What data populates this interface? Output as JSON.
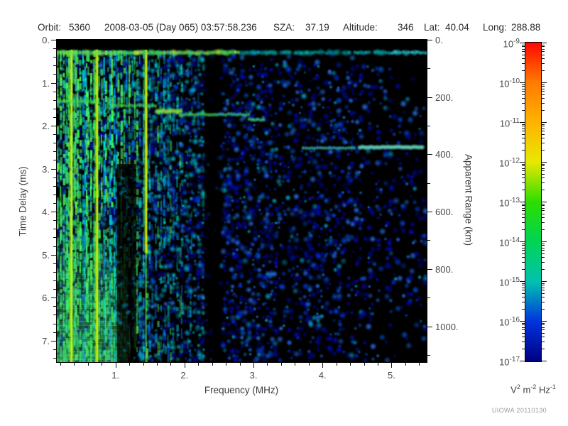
{
  "header": {
    "orbit_label": "Orbit:",
    "orbit_value": "5360",
    "datetime": "2008-03-05 (Day 065) 03:57:58.236",
    "sza_label": "SZA:",
    "sza_value": "37.19",
    "altitude_label": "Altitude:",
    "altitude_value": "346",
    "lat_label": "Lat:",
    "lat_value": "40.04",
    "long_label": "Long:",
    "long_value": "288.88"
  },
  "chart_data": {
    "type": "heatmap",
    "xlabel": "Frequency (MHz)",
    "ylabel_left": "Time Delay (ms)",
    "ylabel_right": "Apparent Range (km)",
    "x_range_mhz": [
      0.15,
      5.51
    ],
    "x_major_ticks": [
      1,
      2,
      3,
      4,
      5
    ],
    "x_tick_labels": [
      "1.",
      "2.",
      "3.",
      "4.",
      "5."
    ],
    "x_minor_step_mhz": 0.2,
    "y_range_ms": [
      0,
      7.5
    ],
    "y_major_ticks": [
      0,
      1,
      2,
      3,
      4,
      5,
      6,
      7
    ],
    "y_tick_labels": [
      "0.",
      "1.",
      "2.",
      "3.",
      "4.",
      "5.",
      "6.",
      "7."
    ],
    "y_minor_step_ms": 0.2,
    "right_range_km": [
      0,
      1125
    ],
    "right_major_ticks": [
      0,
      200,
      400,
      600,
      800,
      1000
    ],
    "right_tick_labels": [
      "0.",
      "200.",
      "400.",
      "600.",
      "800.",
      "1000."
    ],
    "right_minor_step_km": 100,
    "features": {
      "transmit_pulse": {
        "delay_ms": 0.3,
        "freq_span_mhz": [
          0.15,
          5.51
        ]
      },
      "ionospheric_echo_trace": [
        {
          "f1": 0.15,
          "f2": 0.73,
          "delay_ms": 1.44,
          "bright": false
        },
        {
          "f1": 1.0,
          "f2": 1.61,
          "delay_ms": 1.53,
          "bright": false
        },
        {
          "f1": 1.61,
          "f2": 1.94,
          "delay_ms": 1.66,
          "bright": true
        },
        {
          "f1": 1.94,
          "f2": 2.94,
          "delay_ms": 1.74,
          "bright": false
        },
        {
          "f1": 2.94,
          "f2": 3.17,
          "delay_ms": 1.86,
          "bright": false
        }
      ],
      "surface_echo": [
        {
          "f1": 3.72,
          "f2": 4.47,
          "delay_ms": 2.52,
          "bright": false
        },
        {
          "f1": 4.54,
          "f2": 5.46,
          "delay_ms": 2.5,
          "bright": true
        }
      ],
      "quiet_band_mhz": [
        2.29,
        2.52
      ],
      "noise_stripe_band_max_mhz": 2.29,
      "interference_lines_mhz": [
        0.35,
        0.72,
        1.43
      ],
      "dark_column_mhz": [
        1.02,
        1.3
      ]
    }
  },
  "colorbar": {
    "scale": "log",
    "base": "10",
    "exponents": [
      "-9",
      "-10",
      "-11",
      "-12",
      "-13",
      "-14",
      "-15",
      "-16",
      "-17"
    ],
    "decade_colors": [
      "#ff0800",
      "#ff7b00",
      "#ffb300",
      "#e8e800",
      "#2edd00",
      "#00d455",
      "#00c2b0",
      "#0033dd",
      "#000080"
    ],
    "units_parts": [
      [
        "V",
        "2"
      ],
      [
        "m",
        "-2"
      ],
      [
        "Hz",
        "-1"
      ]
    ]
  },
  "credit": "UIOWA 20110130"
}
